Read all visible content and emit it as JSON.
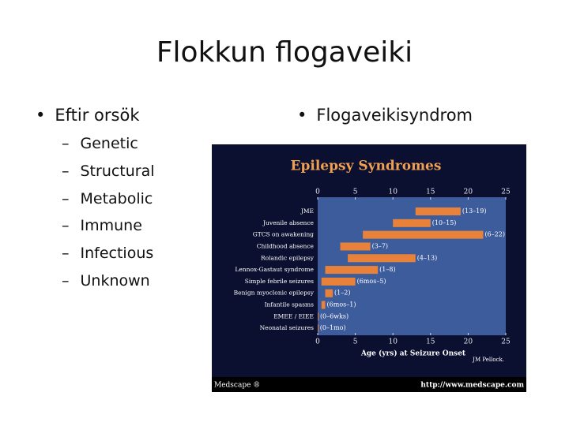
{
  "slide": {
    "title": "Flokkun flogaveiki",
    "left": {
      "heading": "Eftir orsök",
      "items": [
        "Genetic",
        "Structural",
        "Metabolic",
        "Immune",
        "Infectious",
        "Unknown"
      ]
    },
    "right": {
      "heading": "Flogaveikisyndrom"
    }
  },
  "chart_data": {
    "type": "range-bar",
    "title": "Epilepsy Syndromes",
    "categories": [
      "JME",
      "Juvenile absence",
      "GTCS on awakening",
      "Childhood absence",
      "Rolandic epilepsy",
      "Lennox-Gastaut syndrome",
      "Simple febrile seizures",
      "Benign myoclonic epilepsy",
      "Infantile spasms",
      "EMEE / EIEE",
      "Neonatal seizures"
    ],
    "low": [
      13,
      10,
      6,
      3,
      4,
      1,
      0.5,
      1,
      0.5,
      0,
      0
    ],
    "high": [
      19,
      15,
      22,
      7,
      13,
      8,
      5,
      2,
      1,
      0.1,
      0.08
    ],
    "value_labels": [
      "(13–19)",
      "(10–15)",
      "(6–22)",
      "(3–7)",
      "(4–13)",
      "(1–8)",
      "(6mos–5)",
      "(1–2)",
      "(6mos–1)",
      "(0–6wks)",
      "(0–1mo)"
    ],
    "color": "#e8823a",
    "xlabel": "Age (yrs) at Seizure Onset",
    "xlim": [
      0,
      25
    ],
    "xticks": [
      0,
      5,
      10,
      15,
      20,
      25
    ],
    "credit": "JM Pellock.",
    "source_left": "Medscape ®",
    "source_right": "http://www.medscape.com"
  }
}
